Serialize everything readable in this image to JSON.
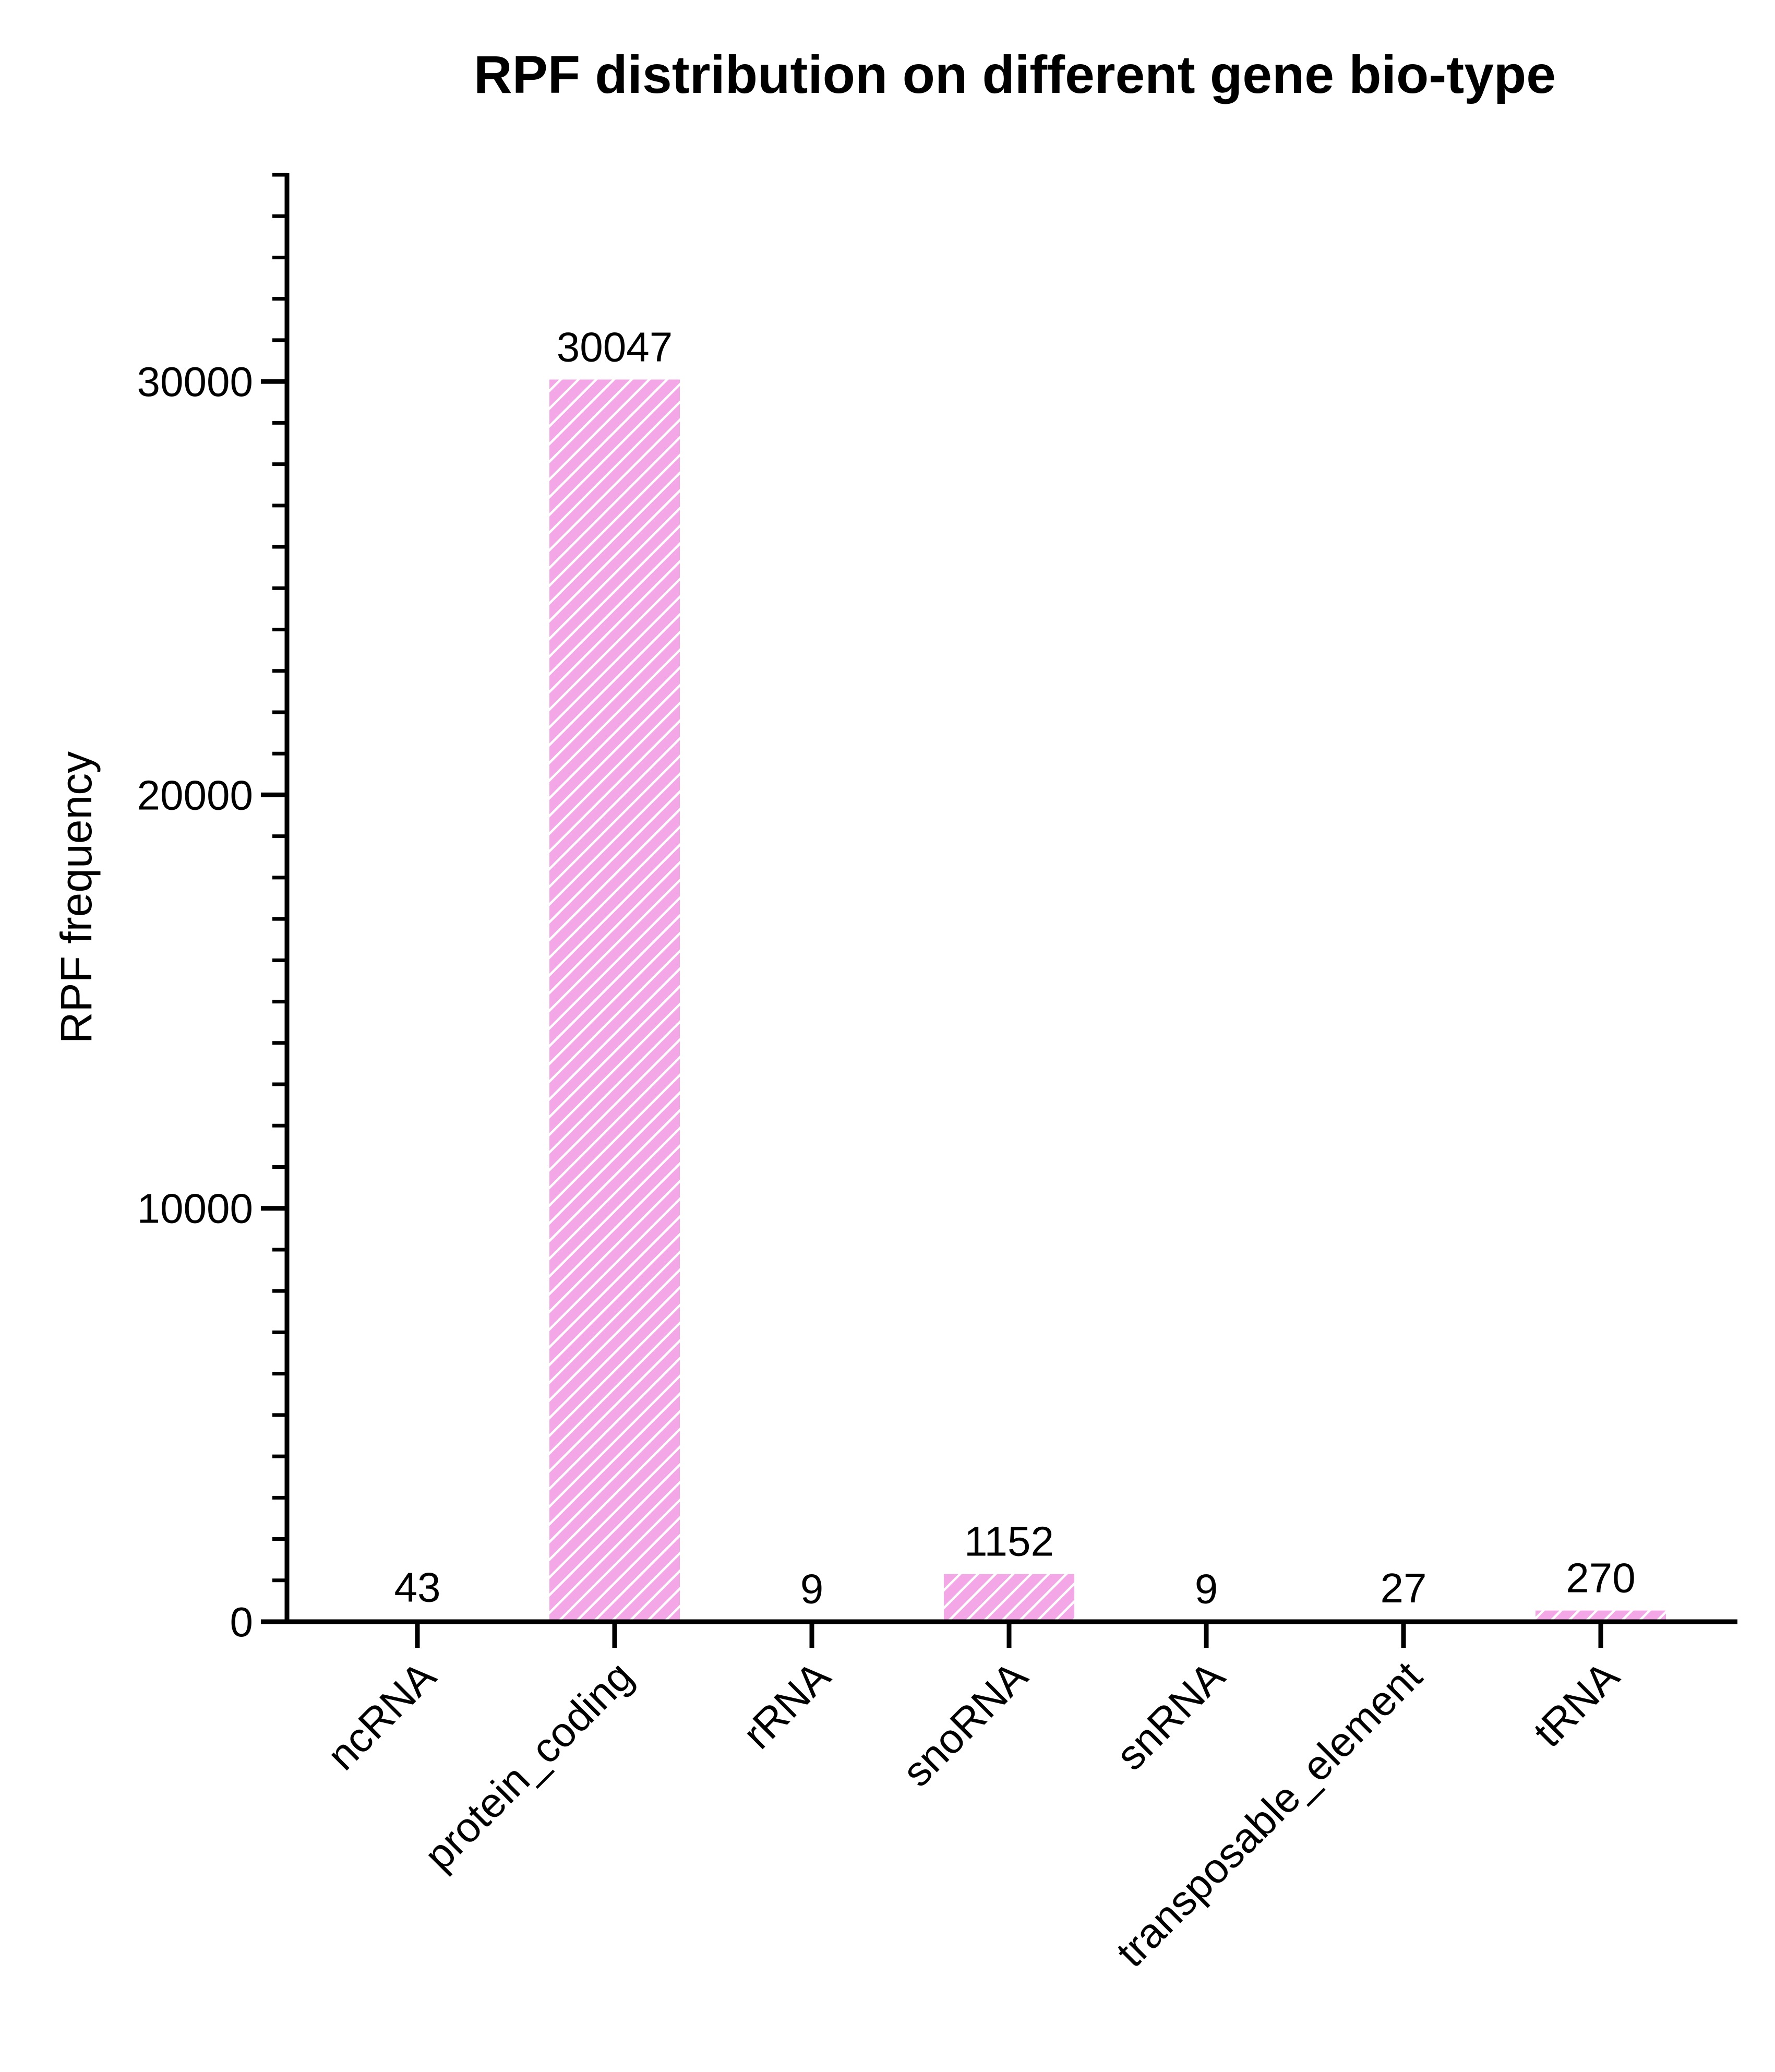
{
  "chart_data": {
    "type": "bar",
    "title": "RPF distribution on different gene bio-type",
    "xlabel": "",
    "ylabel": "RPF frequency",
    "categories": [
      "ncRNA",
      "protein_coding",
      "rRNA",
      "snoRNA",
      "snRNA",
      "transposable_element",
      "tRNA"
    ],
    "values": [
      43,
      30047,
      9,
      1152,
      9,
      27,
      270
    ],
    "data_labels": [
      "43",
      "30047",
      "9",
      "1152",
      "9",
      "27",
      "270"
    ],
    "ylim": [
      0,
      35000
    ],
    "yticks": [
      0,
      10000,
      20000,
      30000
    ],
    "ytick_labels": [
      "0",
      "10000",
      "20000",
      "30000"
    ],
    "minor_tick_step": 1000,
    "grid": false,
    "legend": "none",
    "colors": {
      "bar": "#f4a7e6",
      "hatch": "#ffffff",
      "axis": "#000000"
    },
    "bar_pattern": "diagonal-hatch"
  }
}
